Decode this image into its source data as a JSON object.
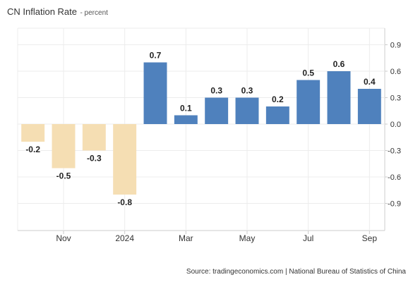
{
  "header": {
    "title": "CN Inflation Rate",
    "subtitle": "- percent"
  },
  "source": "Source: tradingeconomics.com | National Bureau of Statistics of China",
  "chart_data": {
    "type": "bar",
    "title": "CN Inflation Rate",
    "subtitle": "percent",
    "categories": [
      "2023-10",
      "2023-11",
      "2023-12",
      "2024-01",
      "2024-02",
      "2024-03",
      "2024-04",
      "2024-05",
      "2024-06",
      "2024-07",
      "2024-08",
      "2024-09"
    ],
    "values": [
      -0.2,
      -0.5,
      -0.3,
      -0.8,
      0.7,
      0.1,
      0.3,
      0.3,
      0.2,
      0.5,
      0.6,
      0.4
    ],
    "data_labels": [
      "-0.2",
      "-0.5",
      "-0.3",
      "-0.8",
      "0.7",
      "0.1",
      "0.3",
      "0.3",
      "0.2",
      "0.5",
      "0.6",
      "0.4"
    ],
    "x_tick_labels": [
      {
        "category": "2023-11",
        "label": "Nov"
      },
      {
        "category": "2024-01",
        "label": "2024"
      },
      {
        "category": "2024-03",
        "label": "Mar"
      },
      {
        "category": "2024-05",
        "label": "May"
      },
      {
        "category": "2024-07",
        "label": "Jul"
      },
      {
        "category": "2024-09",
        "label": "Sep"
      }
    ],
    "y_ticks": [
      0.9,
      0.6,
      0.3,
      0.0,
      -0.3,
      -0.6,
      -0.9
    ],
    "y_tick_labels": [
      "0.9",
      "0.6",
      "0.3",
      "0.0",
      "-0.3",
      "-0.6",
      "-0.9"
    ],
    "ylim": [
      -1.15,
      1.15
    ],
    "y_axis_side": "right",
    "grid": true,
    "colors": {
      "positive": "#4f81bd",
      "negative": "#f5deb3"
    }
  }
}
